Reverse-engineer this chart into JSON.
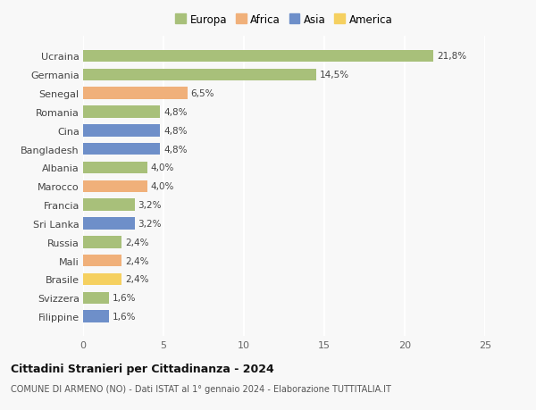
{
  "categories": [
    "Ucraina",
    "Germania",
    "Senegal",
    "Romania",
    "Cina",
    "Bangladesh",
    "Albania",
    "Marocco",
    "Francia",
    "Sri Lanka",
    "Russia",
    "Mali",
    "Brasile",
    "Svizzera",
    "Filippine"
  ],
  "values": [
    21.8,
    14.5,
    6.5,
    4.8,
    4.8,
    4.8,
    4.0,
    4.0,
    3.2,
    3.2,
    2.4,
    2.4,
    2.4,
    1.6,
    1.6
  ],
  "labels": [
    "21,8%",
    "14,5%",
    "6,5%",
    "4,8%",
    "4,8%",
    "4,8%",
    "4,0%",
    "4,0%",
    "3,2%",
    "3,2%",
    "2,4%",
    "2,4%",
    "2,4%",
    "1,6%",
    "1,6%"
  ],
  "continents": [
    "Europa",
    "Europa",
    "Africa",
    "Europa",
    "Asia",
    "Asia",
    "Europa",
    "Africa",
    "Europa",
    "Asia",
    "Europa",
    "Africa",
    "America",
    "Europa",
    "Asia"
  ],
  "colors": {
    "Europa": "#a8c07a",
    "Africa": "#f0b07a",
    "Asia": "#6e8fc9",
    "America": "#f5d060"
  },
  "legend_order": [
    "Europa",
    "Africa",
    "Asia",
    "America"
  ],
  "xlim": [
    0,
    25
  ],
  "xticks": [
    0,
    5,
    10,
    15,
    20,
    25
  ],
  "title": "Cittadini Stranieri per Cittadinanza - 2024",
  "subtitle": "COMUNE DI ARMENO (NO) - Dati ISTAT al 1° gennaio 2024 - Elaborazione TUTTITALIA.IT",
  "background_color": "#f8f8f8",
  "grid_color": "#ffffff",
  "bar_height": 0.65
}
